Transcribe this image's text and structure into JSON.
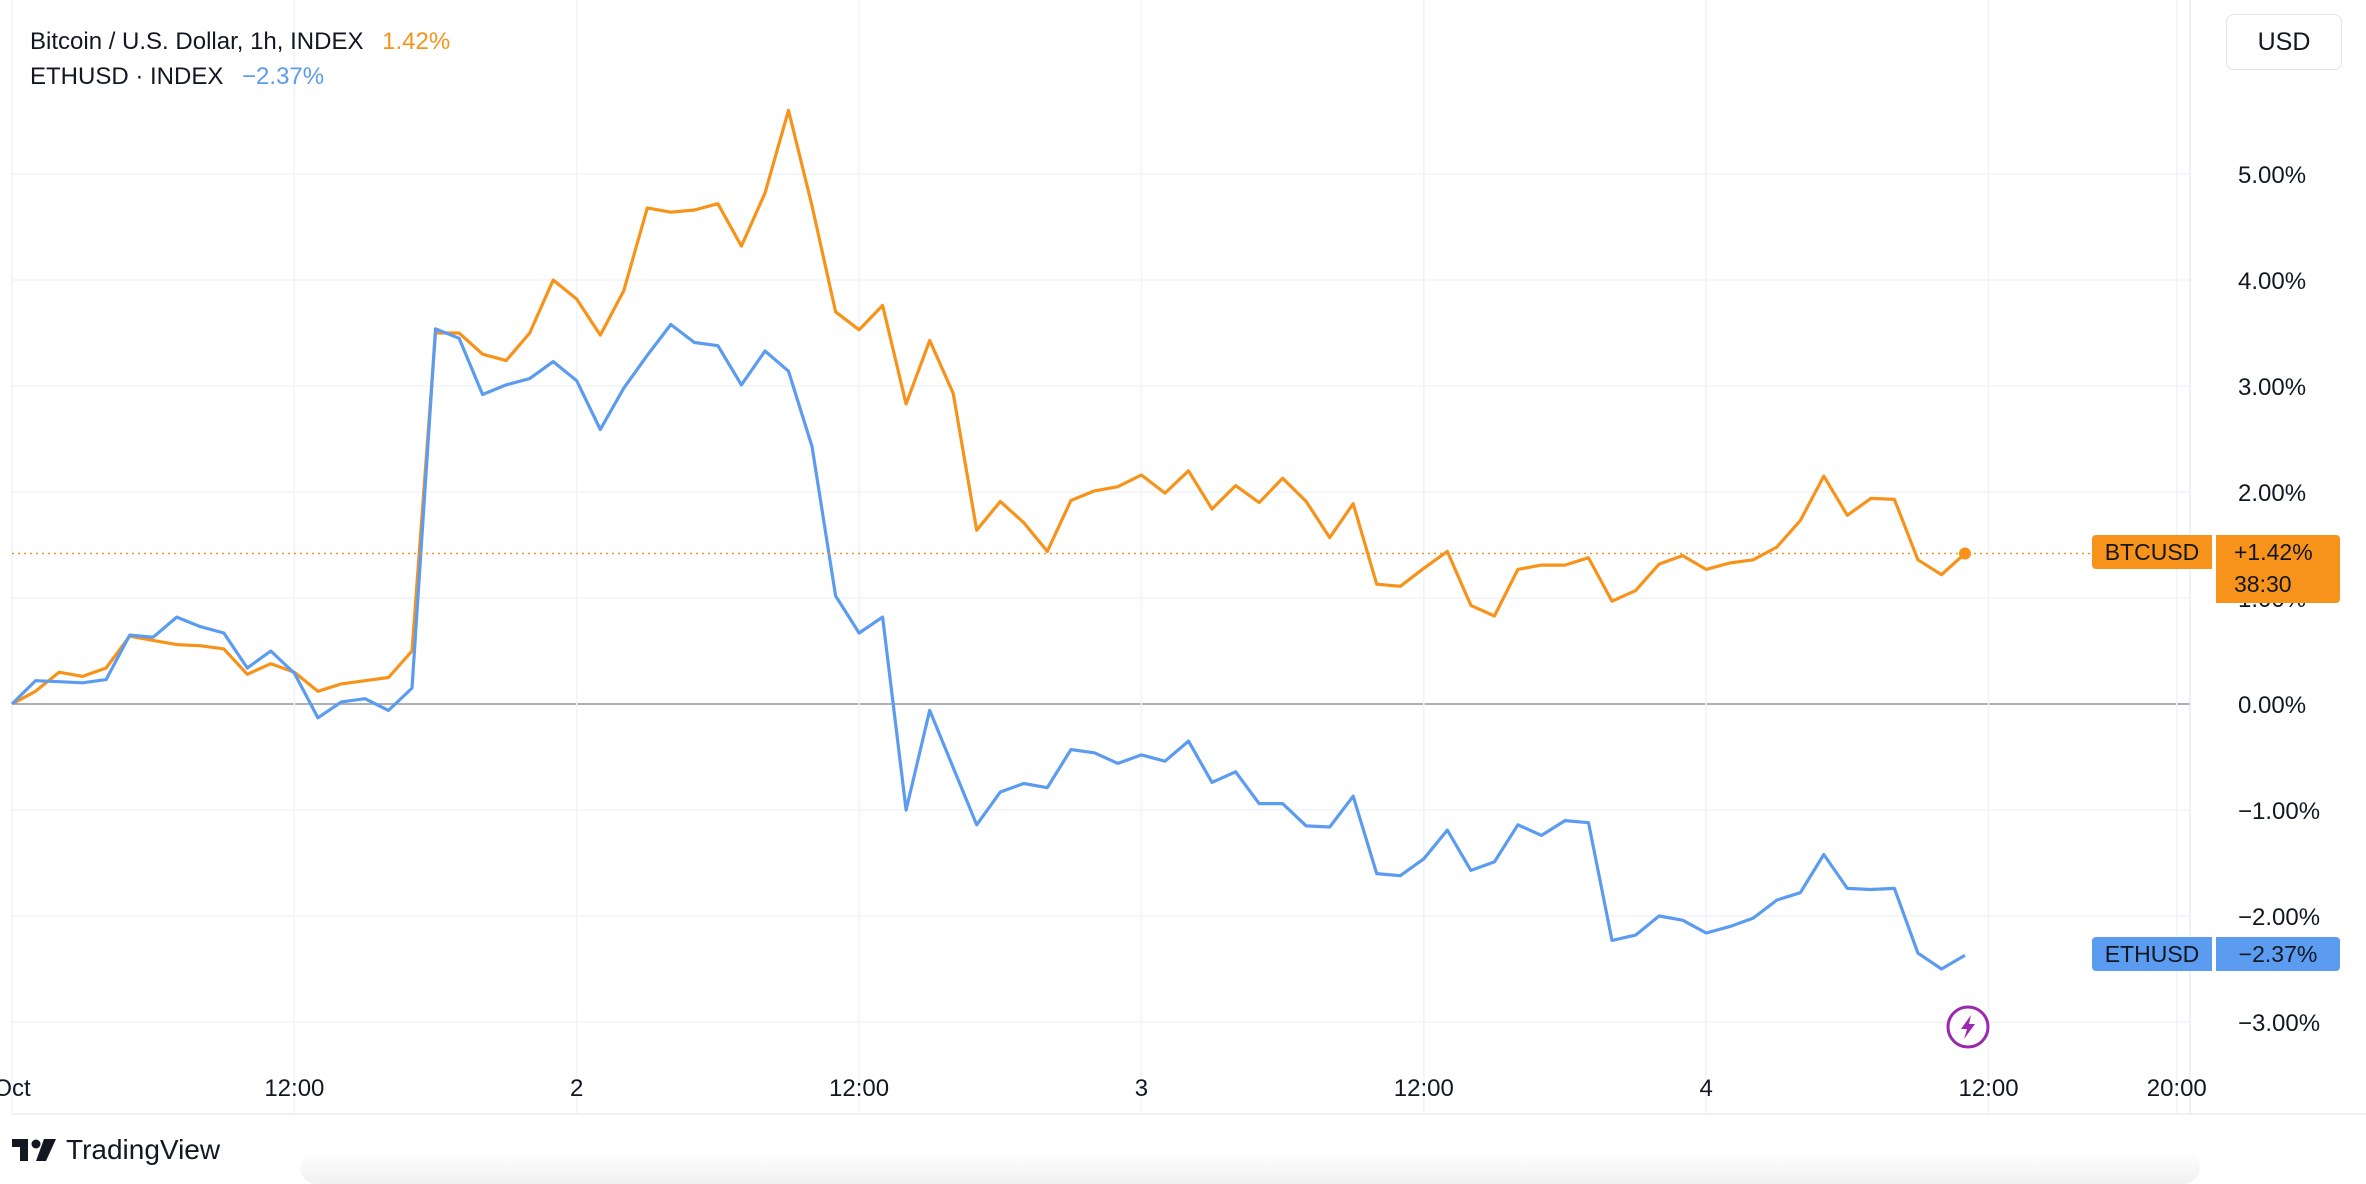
{
  "legend": {
    "btc_name": "Bitcoin / U.S. Dollar, 1h, INDEX",
    "btc_change": "1.42%",
    "eth_name": "ETHUSD · INDEX",
    "eth_change": "−2.37%"
  },
  "currency_button": "USD",
  "brand": "TradingView",
  "colors": {
    "btc": "#F7931A",
    "eth": "#5B9CF0",
    "grid": "#F0F3FA",
    "zero_line": "#9598A1",
    "text": "#131722"
  },
  "price_tags": {
    "btc_label": "BTCUSD",
    "btc_value": "+1.42%",
    "btc_countdown": "38:30",
    "eth_label": "ETHUSD",
    "eth_value": "−2.37%"
  },
  "chart_data": {
    "type": "line",
    "title": "",
    "xlabel": "",
    "ylabel": "",
    "y_unit": "%",
    "ylim": [
      -3.3,
      5.9
    ],
    "y_ticks": [
      -3,
      -2,
      -1,
      0,
      1,
      2,
      3,
      4,
      5
    ],
    "y_tick_labels": [
      "−3.00%",
      "−2.00%",
      "−1.00%",
      "0.00%",
      "1.00%",
      "2.00%",
      "3.00%",
      "4.00%",
      "5.00%"
    ],
    "x_unit": "hours",
    "xlim": [
      0,
      94
    ],
    "x_ticks": [
      {
        "x": 0,
        "label": "Oct"
      },
      {
        "x": 12,
        "label": "12:00"
      },
      {
        "x": 24,
        "label": "2"
      },
      {
        "x": 36,
        "label": "12:00"
      },
      {
        "x": 48,
        "label": "3"
      },
      {
        "x": 60,
        "label": "12:00"
      },
      {
        "x": 72,
        "label": "4"
      },
      {
        "x": 84,
        "label": "12:00"
      },
      {
        "x": 92,
        "label": "20:00"
      }
    ],
    "grid": true,
    "series": [
      {
        "name": "BTCUSD",
        "values": [
          0,
          0.12,
          0.3,
          0.26,
          0.34,
          0.64,
          0.6,
          0.56,
          0.55,
          0.52,
          0.28,
          0.38,
          0.3,
          0.12,
          0.19,
          0.22,
          0.25,
          0.5,
          3.5,
          3.5,
          3.3,
          3.24,
          3.5,
          4.0,
          3.82,
          3.48,
          3.9,
          4.68,
          4.64,
          4.66,
          4.72,
          4.32,
          4.82,
          5.6,
          4.7,
          3.7,
          3.53,
          3.76,
          2.83,
          3.43,
          2.93,
          1.64,
          1.91,
          1.71,
          1.44,
          1.92,
          2.01,
          2.05,
          2.16,
          1.99,
          2.2,
          1.84,
          2.06,
          1.9,
          2.13,
          1.91,
          1.57,
          1.89,
          1.13,
          1.11,
          1.28,
          1.44,
          0.93,
          0.83,
          1.27,
          1.31,
          1.31,
          1.38,
          0.97,
          1.07,
          1.32,
          1.4,
          1.27,
          1.33,
          1.36,
          1.48,
          1.73,
          2.15,
          1.78,
          1.94,
          1.93,
          1.36,
          1.22,
          1.42
        ]
      },
      {
        "name": "ETHUSD",
        "values": [
          0,
          0.22,
          0.21,
          0.2,
          0.23,
          0.65,
          0.63,
          0.82,
          0.73,
          0.67,
          0.34,
          0.5,
          0.29,
          -0.13,
          0.02,
          0.05,
          -0.06,
          0.15,
          3.54,
          3.45,
          2.92,
          3.01,
          3.07,
          3.23,
          3.05,
          2.59,
          2.98,
          3.29,
          3.58,
          3.41,
          3.38,
          3.01,
          3.33,
          3.14,
          2.43,
          1.02,
          0.67,
          0.82,
          -1.0,
          -0.06,
          -0.6,
          -1.14,
          -0.83,
          -0.75,
          -0.79,
          -0.43,
          -0.46,
          -0.56,
          -0.48,
          -0.54,
          -0.35,
          -0.74,
          -0.64,
          -0.94,
          -0.94,
          -1.15,
          -1.16,
          -0.87,
          -1.6,
          -1.62,
          -1.46,
          -1.19,
          -1.57,
          -1.49,
          -1.14,
          -1.24,
          -1.1,
          -1.12,
          -2.23,
          -2.18,
          -2.0,
          -2.04,
          -2.16,
          -2.1,
          -2.02,
          -1.85,
          -1.78,
          -1.42,
          -1.74,
          -1.75,
          -1.74,
          -2.35,
          -2.5,
          -2.37
        ]
      }
    ],
    "current_markers": [
      {
        "series": "BTCUSD",
        "value": 1.42,
        "dotted_line": true
      },
      {
        "series": "ETHUSD",
        "value": -2.37,
        "dotted_line": false
      }
    ],
    "zero_line": true
  },
  "icons": {
    "lightning": "lightning-bolt-icon"
  }
}
